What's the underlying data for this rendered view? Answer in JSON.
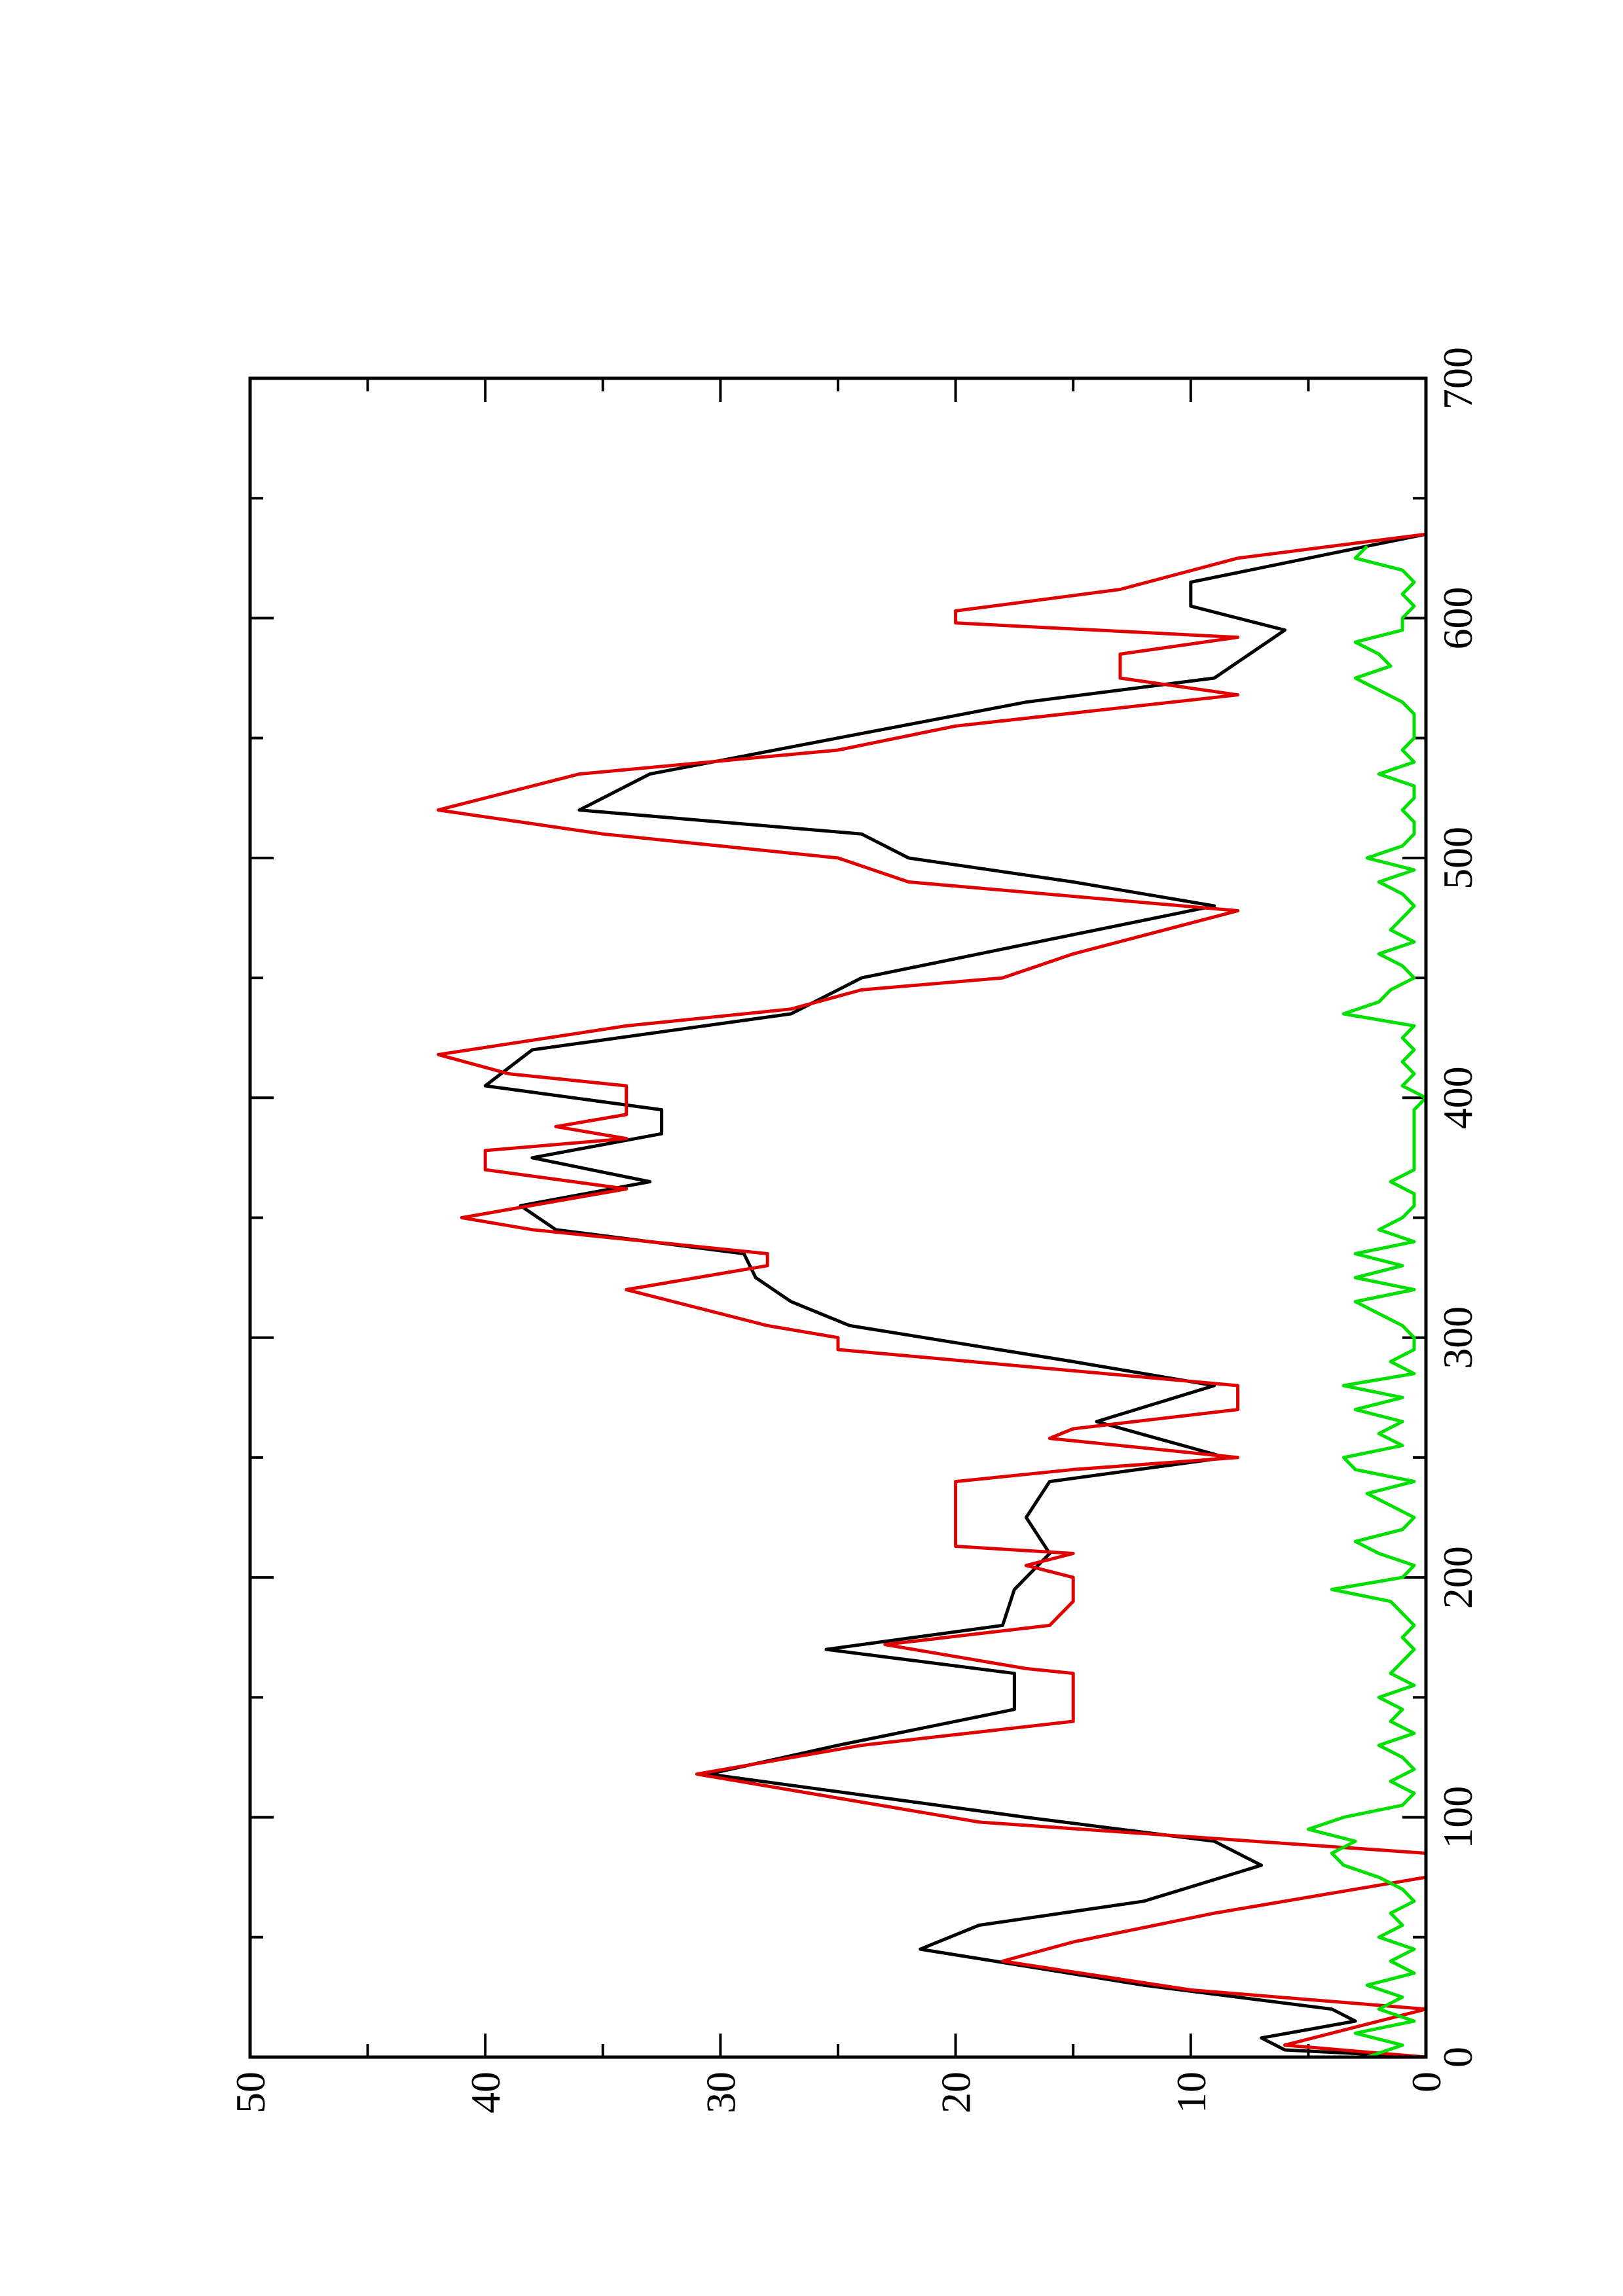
{
  "chart_data": {
    "type": "line",
    "xlim": [
      0,
      700
    ],
    "xticks": [
      0,
      100,
      200,
      300,
      400,
      500,
      600,
      700
    ],
    "xminorticks": [
      50,
      150,
      250,
      350,
      450,
      550,
      650
    ],
    "ylim": [
      0,
      50
    ],
    "yticks": [
      0,
      10,
      20,
      30,
      40,
      50
    ],
    "yminorticks": [
      5,
      15,
      25,
      35,
      45
    ],
    "series": [
      {
        "color": "#000000",
        "x": [
          0,
          3,
          8,
          15,
          20,
          30,
          45,
          55,
          65,
          80,
          90,
          100,
          118,
          130,
          145,
          160,
          170,
          180,
          195,
          210,
          225,
          240,
          250,
          265,
          280,
          290,
          305,
          315,
          325,
          335,
          345,
          355,
          365,
          375,
          385,
          395,
          405,
          420,
          435,
          450,
          460,
          480,
          490,
          500,
          510,
          520,
          535,
          550,
          565,
          575,
          595,
          605,
          615,
          625,
          635
        ],
        "values": [
          0,
          6,
          7,
          3,
          4,
          12,
          21.5,
          19,
          12,
          7,
          9,
          17,
          30.5,
          25,
          17.5,
          17.5,
          25.5,
          18,
          17.5,
          16,
          17,
          16,
          8.5,
          14,
          9,
          15,
          24.5,
          27,
          28.5,
          29,
          37,
          38.5,
          33,
          38,
          32.5,
          32.5,
          40,
          38,
          27,
          24,
          19,
          9,
          15,
          22,
          24,
          36,
          33,
          25,
          17,
          9,
          6,
          10,
          10,
          5,
          0
        ]
      },
      {
        "color": "#e00000",
        "x": [
          0,
          5,
          20,
          28,
          40,
          48,
          60,
          75,
          85,
          98,
          118,
          130,
          140,
          160,
          162,
          172,
          180,
          190,
          200,
          205,
          210,
          213,
          240,
          245,
          250,
          258,
          262,
          270,
          280,
          295,
          300,
          305,
          320,
          330,
          335,
          345,
          350,
          362,
          370,
          378,
          383,
          388,
          393,
          405,
          410,
          418,
          430,
          437,
          445,
          450,
          460,
          478,
          490,
          500,
          510,
          520,
          535,
          545,
          555,
          568,
          575,
          585,
          592,
          598,
          603,
          612,
          625,
          635
        ],
        "values": [
          0,
          6,
          0,
          10,
          18,
          15,
          9,
          0,
          0,
          19,
          31,
          24,
          15,
          15,
          17,
          23,
          16,
          15,
          15,
          17,
          15,
          20,
          20,
          15,
          8,
          16,
          15,
          8,
          8,
          25,
          25,
          28,
          34,
          28,
          28,
          38,
          41,
          34,
          40,
          40,
          34,
          37,
          34,
          34,
          39,
          42,
          34,
          27,
          24,
          18,
          15,
          8,
          22,
          25,
          35,
          42,
          36,
          25,
          20,
          8,
          13,
          13,
          8,
          20,
          20,
          13,
          8,
          0
        ]
      },
      {
        "color": "#00e000",
        "x": [
          0,
          5,
          10,
          15,
          20,
          25,
          30,
          35,
          40,
          45,
          50,
          55,
          60,
          65,
          70,
          75,
          80,
          85,
          90,
          95,
          100,
          105,
          110,
          115,
          120,
          125,
          130,
          135,
          140,
          145,
          150,
          155,
          160,
          165,
          170,
          175,
          180,
          185,
          190,
          195,
          200,
          205,
          210,
          215,
          220,
          225,
          230,
          235,
          240,
          245,
          250,
          255,
          260,
          265,
          270,
          275,
          280,
          285,
          290,
          295,
          300,
          305,
          310,
          315,
          320,
          325,
          330,
          335,
          340,
          345,
          350,
          355,
          360,
          365,
          370,
          375,
          380,
          385,
          390,
          395,
          400,
          405,
          410,
          415,
          420,
          425,
          430,
          435,
          440,
          445,
          450,
          455,
          460,
          465,
          470,
          475,
          480,
          485,
          490,
          495,
          500,
          505,
          510,
          515,
          520,
          525,
          530,
          535,
          540,
          545,
          550,
          555,
          560,
          565,
          570,
          575,
          580,
          585,
          590,
          595,
          600,
          605,
          610,
          615,
          620,
          625,
          630
        ],
        "values": [
          2.5,
          1,
          3,
          0.5,
          2,
          1,
          2.5,
          0.5,
          1.5,
          0.5,
          2,
          1,
          1.5,
          0.5,
          1,
          2,
          3.5,
          4,
          3,
          5,
          3.5,
          1,
          0.5,
          1.5,
          0.5,
          1,
          2,
          0.5,
          1.5,
          1,
          2,
          0.5,
          1.5,
          1,
          0.5,
          1,
          0.5,
          1,
          1.5,
          4,
          1,
          0.5,
          2,
          3,
          1,
          0.5,
          1.5,
          2.5,
          0.5,
          3,
          3.5,
          1,
          2,
          1,
          3,
          1,
          3.5,
          0.5,
          1.5,
          0.5,
          0.5,
          1,
          2,
          3,
          0.5,
          3,
          1,
          3,
          0.5,
          2,
          1,
          0.5,
          0.5,
          1.5,
          0.5,
          0.5,
          0.5,
          0.5,
          0.5,
          0.5,
          0,
          1,
          0.5,
          1,
          0.5,
          1,
          0.5,
          3.5,
          2,
          1.5,
          0.5,
          1,
          2,
          0.5,
          1.5,
          1,
          0.5,
          1,
          2,
          0.5,
          2.5,
          1,
          0.5,
          0.5,
          1,
          0.5,
          0.5,
          2,
          0.5,
          1,
          0.5,
          0.5,
          0.5,
          1,
          2,
          3,
          1.5,
          2,
          3,
          1,
          1,
          0.5,
          1,
          0.5,
          1,
          3,
          2.5
        ]
      }
    ]
  }
}
